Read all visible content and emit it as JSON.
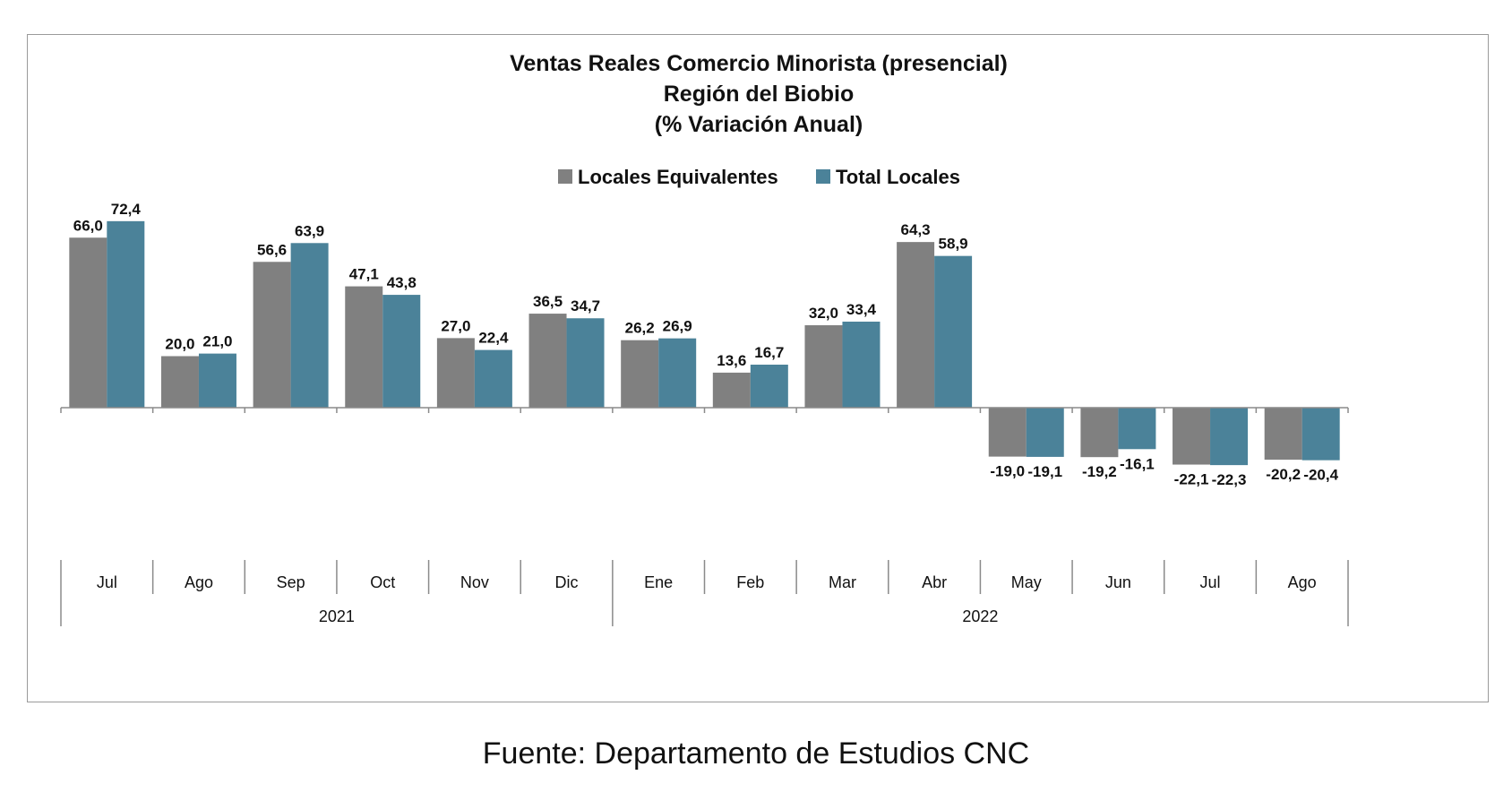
{
  "source": "Fuente: Departamento de Estudios CNC",
  "colors": {
    "locales_equivalentes": "#808080",
    "total_locales": "#4b8299",
    "axis": "#8a8a8a",
    "frame": "#9a9a9a"
  },
  "chart_data": {
    "type": "bar",
    "title": [
      "Ventas Reales Comercio Minorista (presencial)",
      "Región del Biobio",
      "(% Variación Anual)"
    ],
    "legend_position": "top",
    "categories": [
      "Jul",
      "Ago",
      "Sep",
      "Oct",
      "Nov",
      "Dic",
      "Ene",
      "Feb",
      "Mar",
      "Abr",
      "May",
      "Jun",
      "Jul",
      "Ago"
    ],
    "groups": [
      {
        "label": "2021",
        "span": 6
      },
      {
        "label": "2022",
        "span": 8
      }
    ],
    "series": [
      {
        "name": "Locales Equivalentes",
        "values": [
          66.0,
          20.0,
          56.6,
          47.1,
          27.0,
          36.5,
          26.2,
          13.6,
          32.0,
          64.3,
          -19.0,
          -19.2,
          -22.1,
          -20.2
        ],
        "labels": [
          "66,0",
          "20,0",
          "56,6",
          "47,1",
          "27,0",
          "36,5",
          "26,2",
          "13,6",
          "32,0",
          "64,3",
          "-19,0",
          "-19,2",
          "-22,1",
          "-20,2"
        ]
      },
      {
        "name": "Total Locales",
        "values": [
          72.4,
          21.0,
          63.9,
          43.8,
          22.4,
          34.7,
          26.9,
          16.7,
          33.4,
          58.9,
          -19.1,
          -16.1,
          -22.3,
          -20.4
        ],
        "labels": [
          "72,4",
          "21,0",
          "63,9",
          "43,8",
          "22,4",
          "34,7",
          "26,9",
          "16,7",
          "33,4",
          "58,9",
          "-19,1",
          "-16,1",
          "-22,3",
          "-20,4"
        ]
      }
    ],
    "grid": false
  }
}
